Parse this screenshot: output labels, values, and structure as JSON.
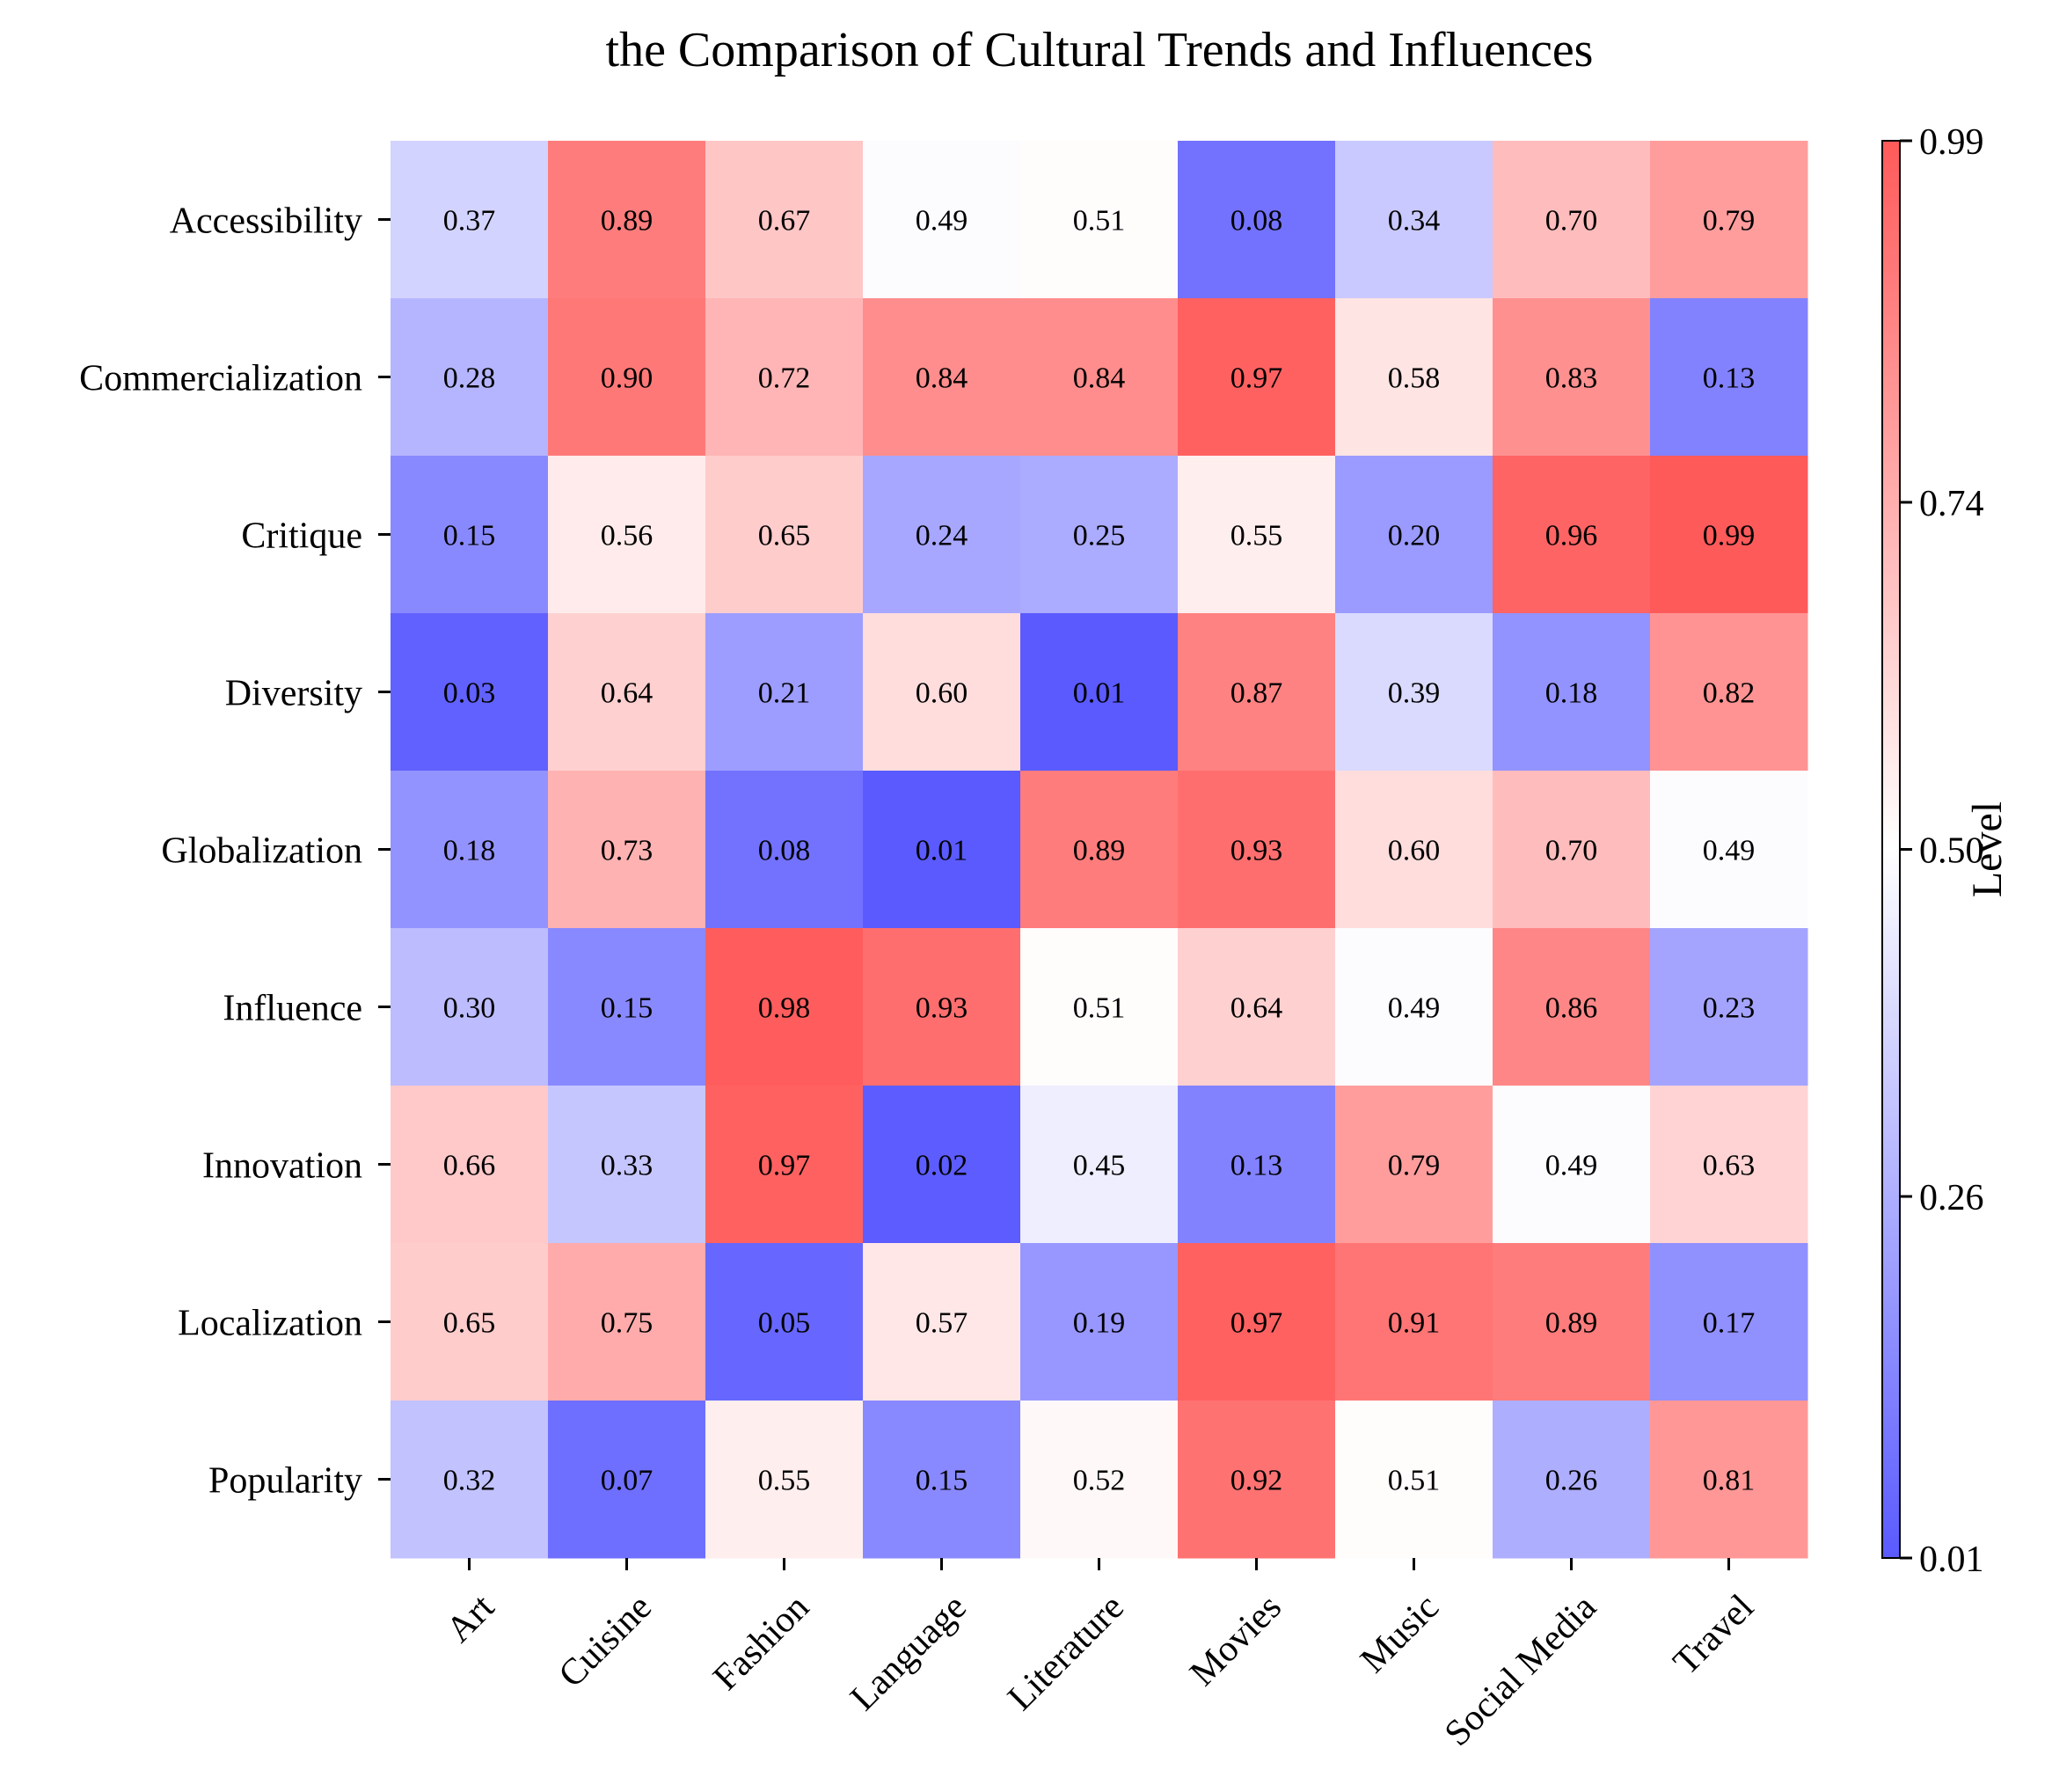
{
  "chart_data": {
    "type": "heatmap",
    "title": "the Comparison of Cultural Trends and Influences",
    "x_categories": [
      "Art",
      "Cuisine",
      "Fashion",
      "Language",
      "Literature",
      "Movies",
      "Music",
      "Social Media",
      "Travel"
    ],
    "y_categories": [
      "Accessibility",
      "Commercialization",
      "Critique",
      "Diversity",
      "Globalization",
      "Influence",
      "Innovation",
      "Localization",
      "Popularity"
    ],
    "values": [
      [
        0.37,
        0.89,
        0.67,
        0.49,
        0.51,
        0.08,
        0.34,
        0.7,
        0.79
      ],
      [
        0.28,
        0.9,
        0.72,
        0.84,
        0.84,
        0.97,
        0.58,
        0.83,
        0.13
      ],
      [
        0.15,
        0.56,
        0.65,
        0.24,
        0.25,
        0.55,
        0.2,
        0.96,
        0.99
      ],
      [
        0.03,
        0.64,
        0.21,
        0.6,
        0.01,
        0.87,
        0.39,
        0.18,
        0.82
      ],
      [
        0.18,
        0.73,
        0.08,
        0.01,
        0.89,
        0.93,
        0.6,
        0.7,
        0.49
      ],
      [
        0.3,
        0.15,
        0.98,
        0.93,
        0.51,
        0.64,
        0.49,
        0.86,
        0.23
      ],
      [
        0.66,
        0.33,
        0.97,
        0.02,
        0.45,
        0.13,
        0.79,
        0.49,
        0.63
      ],
      [
        0.65,
        0.75,
        0.05,
        0.57,
        0.19,
        0.97,
        0.91,
        0.89,
        0.17
      ],
      [
        0.32,
        0.07,
        0.55,
        0.15,
        0.52,
        0.92,
        0.51,
        0.26,
        0.81
      ]
    ],
    "colorbar": {
      "label": "Level",
      "min": 0.01,
      "max": 0.99,
      "ticks": [
        "0.99",
        "0.74",
        "0.50",
        "0.26",
        "0.01"
      ],
      "colors": {
        "low": "#5a5aff",
        "mid": "#ffffff",
        "high": "#ff5a5a"
      }
    }
  }
}
